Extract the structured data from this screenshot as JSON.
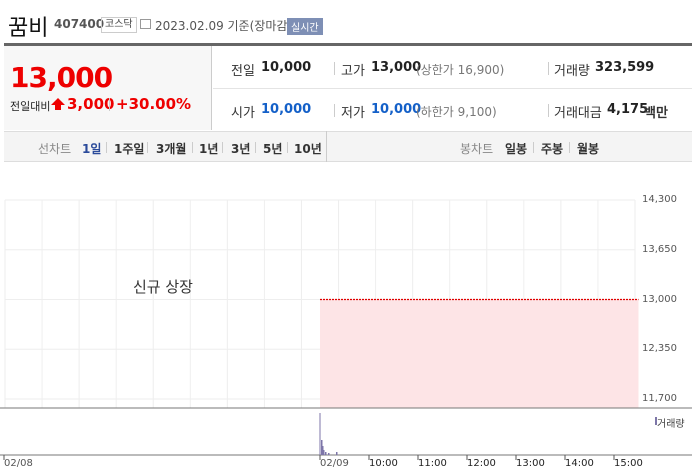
{
  "header": {
    "name": "꿈비",
    "code": "407400",
    "market": "코스닥",
    "date": "2023.02.09 기준(장마감)",
    "realtime": "실시간"
  },
  "summary": {
    "price": "13,000",
    "change_label": "전일대비",
    "change": "3,000",
    "change_pct": "+30.00%",
    "direction": "up"
  },
  "stats": {
    "prev_label": "전일",
    "prev": "10,000",
    "high_label": "고가",
    "high": "13,000",
    "upper_limit": "(상한가 16,900)",
    "volume_label": "거래량",
    "volume": "323,599",
    "open_label": "시가",
    "open": "10,000",
    "low_label": "저가",
    "low": "10,000",
    "lower_limit": "(하한가 9,100)",
    "amount_label": "거래대금",
    "amount": "4,175",
    "amount_unit": "백만"
  },
  "tabs": {
    "line_label": "선차트",
    "line": [
      "1일",
      "1주일",
      "3개월",
      "1년",
      "3년",
      "5년",
      "10년"
    ],
    "active": "1일",
    "candle_label": "봉차트",
    "candle": [
      "일봉",
      "주봉",
      "월봉"
    ]
  },
  "colors": {
    "up": "#e00000",
    "down": "#1460c8",
    "area": "#fde4e6",
    "volume": "#7d76a8"
  },
  "chart_data": {
    "type": "area",
    "annotation": "신규 상장",
    "y_ticks": [
      "14,300",
      "13,650",
      "13,000",
      "12,350",
      "11,700"
    ],
    "ylim": [
      11700,
      14300
    ],
    "x_ticks": [
      "02/08",
      "02/09",
      "10:00",
      "11:00",
      "12:00",
      "13:00",
      "14:00",
      "15:00"
    ],
    "series": [
      {
        "x": [
          "09:00",
          "15:30"
        ],
        "y": [
          13000,
          13000
        ]
      }
    ],
    "volume_legend": "거래량",
    "grid": true
  }
}
